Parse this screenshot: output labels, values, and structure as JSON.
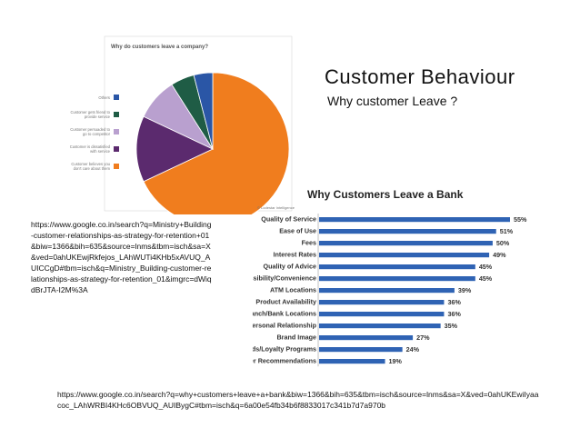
{
  "slide": {
    "title": "Customer  Behaviour",
    "subtitle": "Why customer Leave ?"
  },
  "sources": {
    "pie_source": "https://www.google.co.in/search?q=Ministry+Building-customer-relationships-as-strategy-for-retention+01&biw=1366&bih=635&source=lnms&tbm=isch&sa=X&ved=0ahUKEwjRkfejos_LAhWUTi4KHb5xAVUQ_AUICCgD#tbm=isch&q=Ministry_Building-customer-relationships-as-strategy-for-retention_01&imgrc=dWiqdBrJTA-I2M%3A",
    "bar_source": "https://www.google.co.in/search?q=why+customers+leave+a+bank&biw=1366&bih=635&tbm=isch&source=lnms&sa=X&ved=0ahUKEwiIyaacoc_LAhWRBI4KHc6OBVUQ_AUIBygC#tbm=isch&q=6a00e54fb34b6f8833017c341b7d7a970b"
  },
  "chart_data": [
    {
      "type": "pie",
      "title": "Why do customers leave a company?",
      "categories": [
        "Customer believes you don't care about them",
        "Customer is dissatisfied with service",
        "Customer persuaded to go to competitor",
        "Customer gets friend to provide service",
        "Others"
      ],
      "values": [
        68,
        14,
        9,
        5,
        4
      ],
      "colors": [
        "#f07d1e",
        "#5b2a6e",
        "#b9a0cf",
        "#1f5c45",
        "#2a56a6"
      ],
      "legend": "left"
    },
    {
      "type": "bar",
      "orientation": "horizontal",
      "title": "Why Customers Leave a Bank",
      "credit": "© Lodestar Intelligence",
      "categories": [
        "Quality of Service",
        "Ease of Use",
        "Fees",
        "Interest Rates",
        "Quality of Advice",
        "Accessibility/Convenience",
        "ATM Locations",
        "Product Availability",
        "Branch/Bank Locations",
        "Personal Relationship",
        "Brand Image",
        "Rewards/Loyalty Programs",
        "Peer Recommendations"
      ],
      "values": [
        55,
        51,
        50,
        49,
        45,
        45,
        39,
        36,
        36,
        35,
        27,
        24,
        19
      ],
      "value_labels": [
        "55%",
        "51%",
        "50%",
        "49%",
        "45%",
        "45%",
        "39%",
        "36%",
        "36%",
        "35%",
        "27%",
        "24%",
        "19%"
      ],
      "xlim": [
        0,
        55
      ],
      "bar_color": "#2f63b4",
      "grid": false
    }
  ]
}
